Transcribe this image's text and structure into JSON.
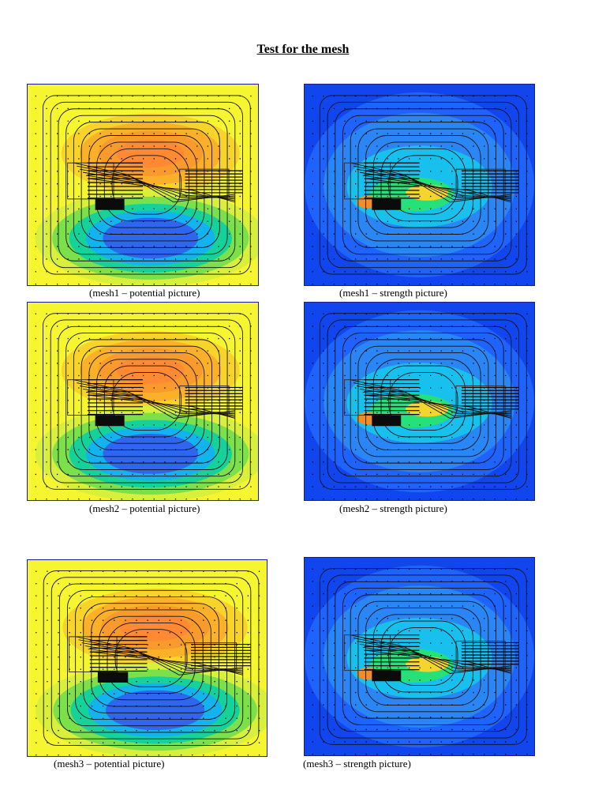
{
  "page": {
    "title": "Test for the mesh"
  },
  "palettes": {
    "potential": [
      "#f5f530",
      "#f8d42a",
      "#fbb02a",
      "#f89a2c",
      "#ff8a33",
      "#2f66f0",
      "#12b3ee",
      "#14d29a",
      "#7be04a",
      "#d8ef3c"
    ],
    "strength": [
      "#1146ee",
      "#1f63ff",
      "#2a86f4",
      "#18c0ee",
      "#26e07a",
      "#f3d52c",
      "#f38d29"
    ]
  },
  "figures": [
    {
      "key": "mesh1-potential",
      "kind": "potential",
      "caption": "(mesh1 – potential picture)"
    },
    {
      "key": "mesh1-strength",
      "kind": "strength",
      "caption": "(mesh1 – strength picture)"
    },
    {
      "key": "mesh2-potential",
      "kind": "potential",
      "caption": "(mesh2 – potential picture)"
    },
    {
      "key": "mesh2-strength",
      "kind": "strength",
      "caption": "(mesh2 – strength picture)"
    },
    {
      "key": "mesh3-potential",
      "kind": "potential",
      "caption": "(mesh3 – potential picture)"
    },
    {
      "key": "mesh3-strength",
      "kind": "strength",
      "caption": "(mesh3 – strength picture)"
    }
  ]
}
